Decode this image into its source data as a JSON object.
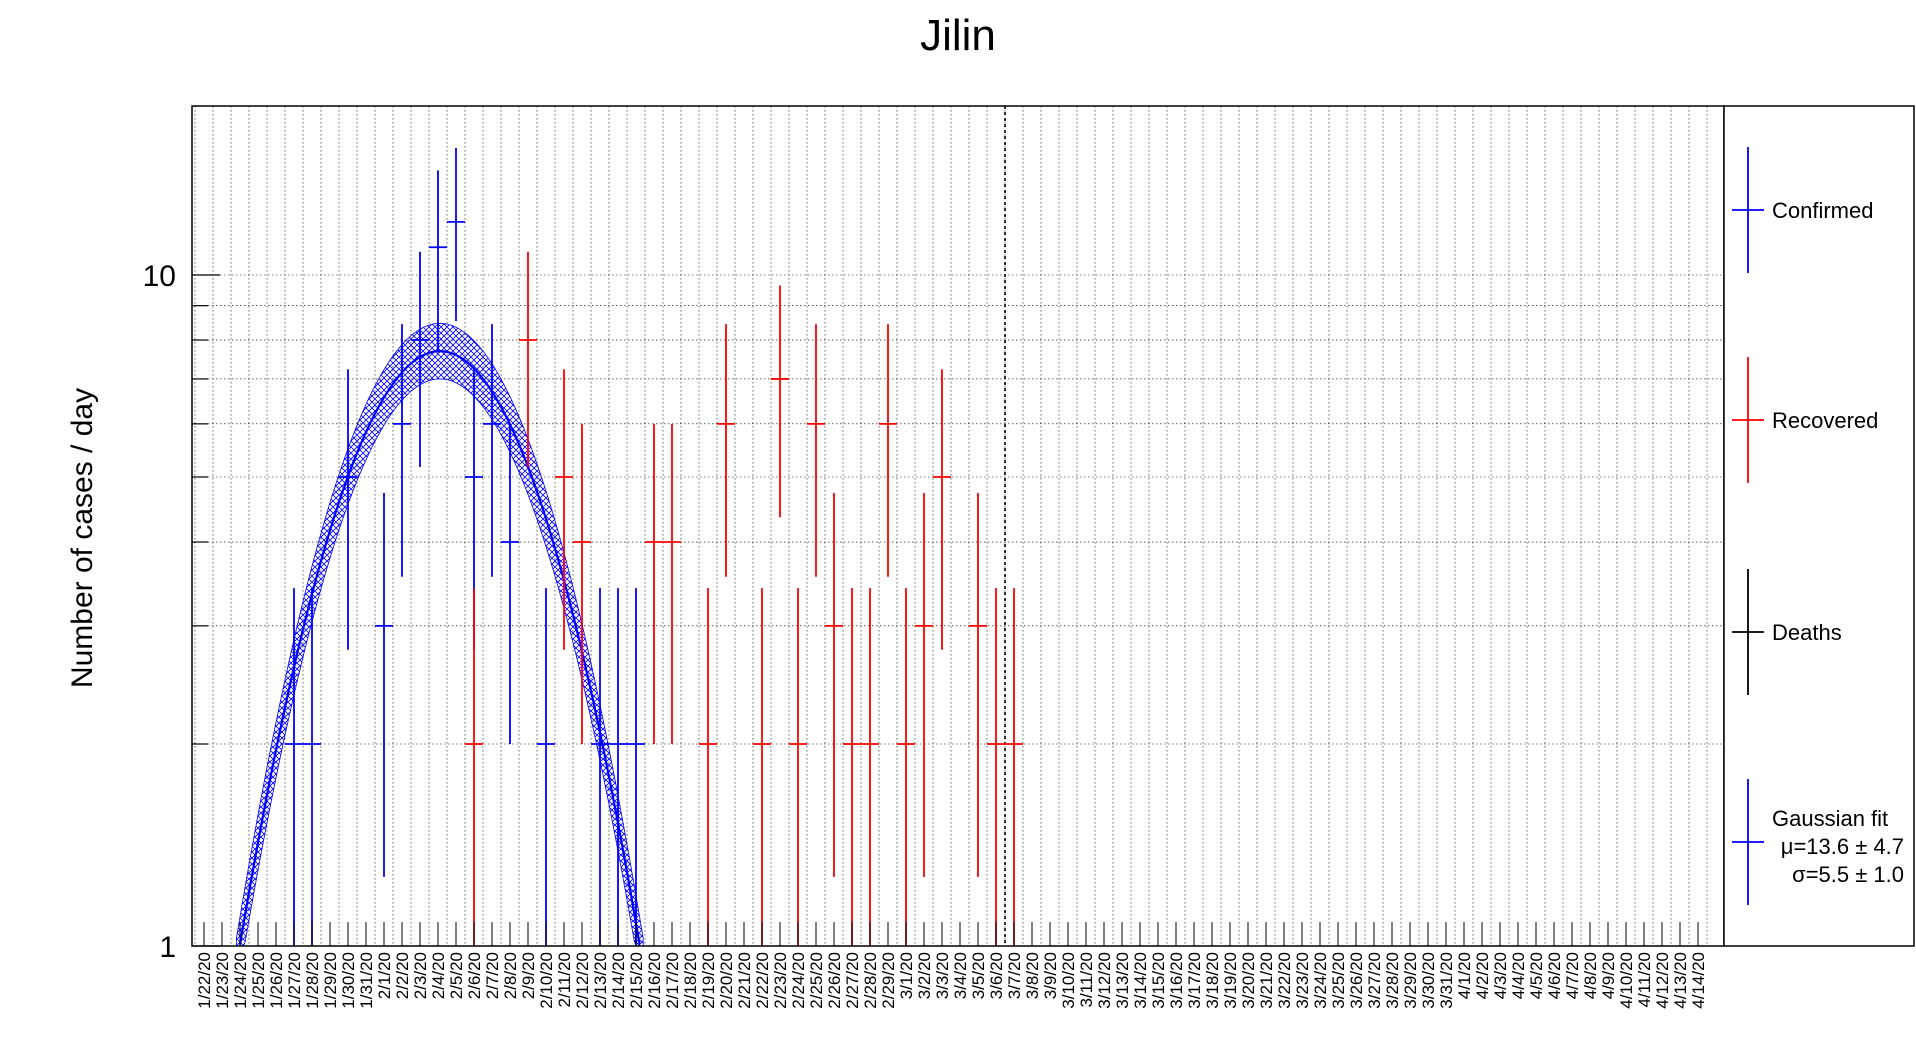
{
  "chart_data": {
    "type": "scatter",
    "title": "Jilin",
    "xlabel": "",
    "ylabel": "Number of cases / day",
    "y_scale": "log",
    "ylim": [
      1,
      18
    ],
    "y_ticks": [
      "1",
      "10"
    ],
    "grid": true,
    "legend_position": "right",
    "categories": [
      "1/22/20",
      "1/23/20",
      "1/24/20",
      "1/25/20",
      "1/26/20",
      "1/27/20",
      "1/28/20",
      "1/29/20",
      "1/30/20",
      "1/31/20",
      "2/1/20",
      "2/2/20",
      "2/3/20",
      "2/4/20",
      "2/5/20",
      "2/6/20",
      "2/7/20",
      "2/8/20",
      "2/9/20",
      "2/10/20",
      "2/11/20",
      "2/12/20",
      "2/13/20",
      "2/14/20",
      "2/15/20",
      "2/16/20",
      "2/17/20",
      "2/18/20",
      "2/19/20",
      "2/20/20",
      "2/21/20",
      "2/22/20",
      "2/23/20",
      "2/24/20",
      "2/25/20",
      "2/26/20",
      "2/27/20",
      "2/28/20",
      "2/29/20",
      "3/1/20",
      "3/2/20",
      "3/3/20",
      "3/4/20",
      "3/5/20",
      "3/6/20",
      "3/7/20",
      "3/8/20",
      "3/9/20",
      "3/10/20",
      "3/11/20",
      "3/12/20",
      "3/13/20",
      "3/14/20",
      "3/15/20",
      "3/16/20",
      "3/17/20",
      "3/18/20",
      "3/19/20",
      "3/20/20",
      "3/21/20",
      "3/22/20",
      "3/23/20",
      "3/24/20",
      "3/25/20",
      "3/26/20",
      "3/27/20",
      "3/28/20",
      "3/29/20",
      "3/30/20",
      "3/31/20",
      "4/1/20",
      "4/2/20",
      "4/3/20",
      "4/4/20",
      "4/5/20",
      "4/6/20",
      "4/7/20",
      "4/8/20",
      "4/9/20",
      "4/10/20",
      "4/11/20",
      "4/12/20",
      "4/13/20",
      "4/14/20"
    ],
    "series": [
      {
        "name": "Confirmed",
        "color": "#0000ff",
        "points": [
          {
            "x": "1/27/20",
            "y": 2
          },
          {
            "x": "1/28/20",
            "y": 2
          },
          {
            "x": "1/30/20",
            "y": 5
          },
          {
            "x": "2/1/20",
            "y": 3
          },
          {
            "x": "2/2/20",
            "y": 6
          },
          {
            "x": "2/3/20",
            "y": 8
          },
          {
            "x": "2/4/20",
            "y": 11
          },
          {
            "x": "2/5/20",
            "y": 12
          },
          {
            "x": "2/6/20",
            "y": 5
          },
          {
            "x": "2/7/20",
            "y": 6
          },
          {
            "x": "2/8/20",
            "y": 4
          },
          {
            "x": "2/10/20",
            "y": 2
          },
          {
            "x": "2/13/20",
            "y": 2
          },
          {
            "x": "2/14/20",
            "y": 2
          },
          {
            "x": "2/15/20",
            "y": 2
          }
        ]
      },
      {
        "name": "Recovered",
        "color": "#ff0000",
        "points": [
          {
            "x": "2/6/20",
            "y": 2
          },
          {
            "x": "2/9/20",
            "y": 8
          },
          {
            "x": "2/11/20",
            "y": 5
          },
          {
            "x": "2/12/20",
            "y": 4
          },
          {
            "x": "2/16/20",
            "y": 4
          },
          {
            "x": "2/17/20",
            "y": 4
          },
          {
            "x": "2/19/20",
            "y": 2
          },
          {
            "x": "2/20/20",
            "y": 6
          },
          {
            "x": "2/22/20",
            "y": 2
          },
          {
            "x": "2/23/20",
            "y": 7
          },
          {
            "x": "2/24/20",
            "y": 2
          },
          {
            "x": "2/25/20",
            "y": 6
          },
          {
            "x": "2/26/20",
            "y": 3
          },
          {
            "x": "2/27/20",
            "y": 2
          },
          {
            "x": "2/28/20",
            "y": 2
          },
          {
            "x": "2/29/20",
            "y": 6
          },
          {
            "x": "3/1/20",
            "y": 2
          },
          {
            "x": "3/2/20",
            "y": 3
          },
          {
            "x": "3/3/20",
            "y": 5
          },
          {
            "x": "3/5/20",
            "y": 3
          },
          {
            "x": "3/6/20",
            "y": 2
          },
          {
            "x": "3/7/20",
            "y": 2
          }
        ]
      },
      {
        "name": "Deaths",
        "color": "#000000",
        "points": []
      }
    ],
    "fit": {
      "name": "Gaussian fit",
      "mu_label": "μ=13.6 ± 4.7",
      "sigma_label": "σ=5.5 ± 1.0",
      "mu": 13.6,
      "sigma": 5.5,
      "peak": 7.7,
      "color": "#0000ff"
    },
    "divider_after": "3/6/20"
  }
}
